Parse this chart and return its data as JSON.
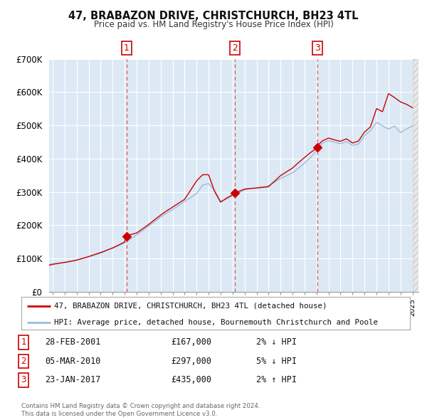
{
  "title": "47, BRABAZON DRIVE, CHRISTCHURCH, BH23 4TL",
  "subtitle": "Price paid vs. HM Land Registry's House Price Index (HPI)",
  "background_color": "#ffffff",
  "plot_bg_color": "#dce9f5",
  "grid_color": "#ffffff",
  "ylim": [
    0,
    700000
  ],
  "yticks": [
    0,
    100000,
    200000,
    300000,
    400000,
    500000,
    600000,
    700000
  ],
  "ytick_labels": [
    "£0",
    "£100K",
    "£200K",
    "£300K",
    "£400K",
    "£500K",
    "£600K",
    "£700K"
  ],
  "xlim_start": 1994.7,
  "xlim_end": 2025.5,
  "sale_color": "#cc0000",
  "hpi_color": "#99bbdd",
  "sale_dot_color": "#cc0000",
  "vline_color": "#dd5555",
  "vline_style": "--",
  "transactions": [
    {
      "num": 1,
      "date_label": "28-FEB-2001",
      "year": 2001.15,
      "price": 167000,
      "pct": "2%",
      "dir": "↓"
    },
    {
      "num": 2,
      "date_label": "05-MAR-2010",
      "year": 2010.18,
      "price": 297000,
      "pct": "5%",
      "dir": "↓"
    },
    {
      "num": 3,
      "date_label": "23-JAN-2017",
      "year": 2017.06,
      "price": 435000,
      "pct": "2%",
      "dir": "↑"
    }
  ],
  "legend_sale_label": "47, BRABAZON DRIVE, CHRISTCHURCH, BH23 4TL (detached house)",
  "legend_hpi_label": "HPI: Average price, detached house, Bournemouth Christchurch and Poole",
  "footer1": "Contains HM Land Registry data © Crown copyright and database right 2024.",
  "footer2": "This data is licensed under the Open Government Licence v3.0.",
  "hpi_anchors_x": [
    1994.7,
    1995,
    1996,
    1997,
    1998,
    1999,
    2000,
    2001,
    2002,
    2003,
    2004,
    2005,
    2006,
    2007,
    2007.5,
    2008,
    2008.5,
    2009,
    2009.5,
    2010,
    2010.5,
    2011,
    2012,
    2013,
    2014,
    2015,
    2016,
    2016.5,
    2017,
    2017.5,
    2018,
    2018.5,
    2019,
    2019.5,
    2020,
    2020.5,
    2021,
    2021.5,
    2022,
    2022.5,
    2023,
    2023.5,
    2024,
    2024.5,
    2025
  ],
  "hpi_anchors_y": [
    82000,
    84000,
    90000,
    97000,
    107000,
    118000,
    133000,
    148000,
    172000,
    198000,
    225000,
    248000,
    272000,
    295000,
    320000,
    325000,
    305000,
    272000,
    278000,
    288000,
    296000,
    305000,
    312000,
    318000,
    340000,
    358000,
    388000,
    405000,
    425000,
    448000,
    455000,
    450000,
    445000,
    452000,
    440000,
    445000,
    470000,
    485000,
    510000,
    500000,
    490000,
    500000,
    480000,
    490000,
    500000
  ],
  "sale_anchors_x": [
    1994.7,
    1995,
    1996,
    1997,
    1998,
    1999,
    2000,
    2001,
    2001.15,
    2002,
    2003,
    2004,
    2005,
    2006,
    2007,
    2007.5,
    2008,
    2008.5,
    2009,
    2009.5,
    2010,
    2010.18,
    2010.5,
    2011,
    2012,
    2013,
    2014,
    2015,
    2016,
    2016.5,
    2017,
    2017.06,
    2017.5,
    2018,
    2018.5,
    2019,
    2019.5,
    2020,
    2020.5,
    2021,
    2021.5,
    2022,
    2022.5,
    2023,
    2023.5,
    2024,
    2024.5,
    2025
  ],
  "sale_anchors_y": [
    80000,
    83000,
    88000,
    95000,
    105000,
    116000,
    130000,
    148000,
    167000,
    175000,
    200000,
    228000,
    252000,
    275000,
    330000,
    348000,
    348000,
    298000,
    265000,
    278000,
    288000,
    297000,
    298000,
    305000,
    308000,
    312000,
    345000,
    368000,
    400000,
    415000,
    428000,
    435000,
    450000,
    458000,
    452000,
    448000,
    455000,
    442000,
    448000,
    475000,
    490000,
    545000,
    535000,
    590000,
    578000,
    565000,
    558000,
    548000
  ]
}
